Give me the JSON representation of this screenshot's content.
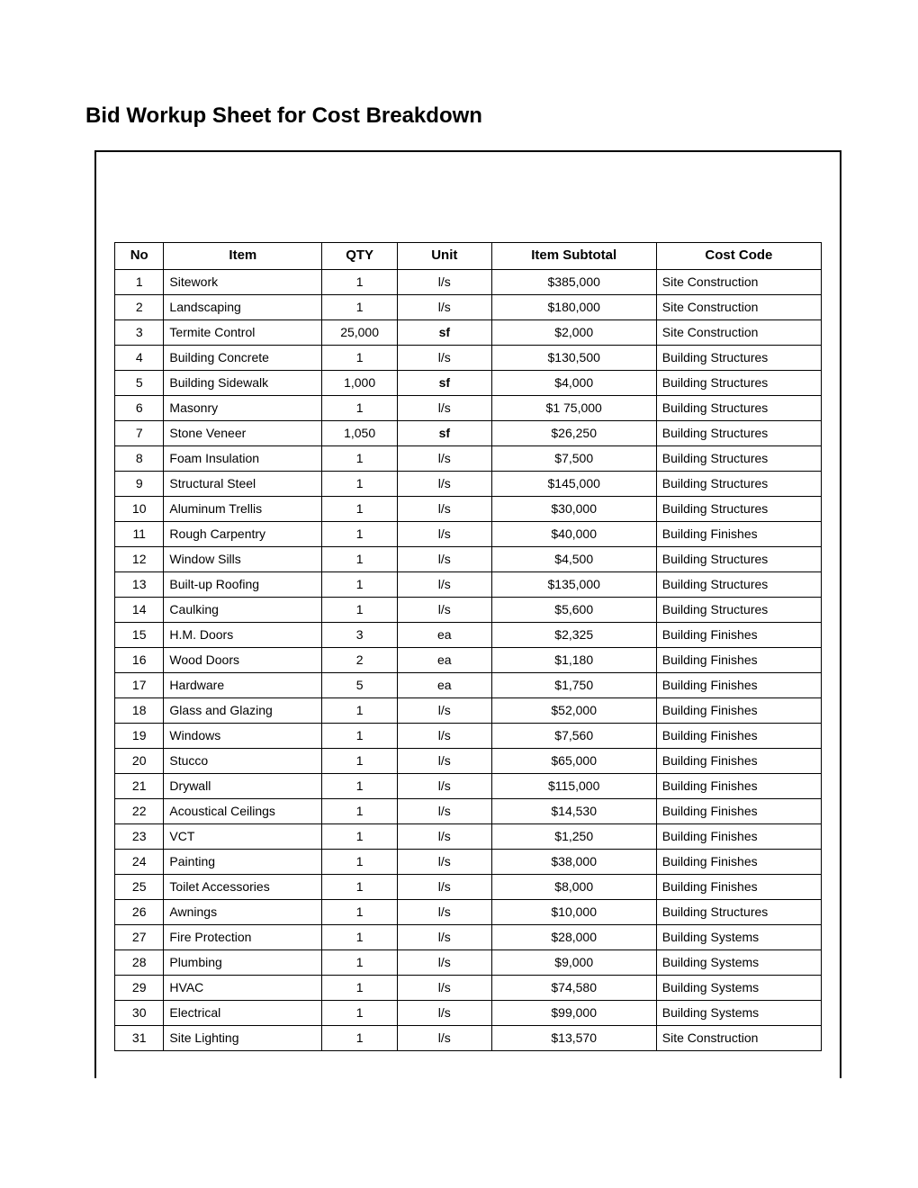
{
  "title": "Bid Workup Sheet for Cost Breakdown",
  "table": {
    "headers": {
      "no": "No",
      "item": "Item",
      "qty": "QTY",
      "unit": "Unit",
      "subtotal": "Item Subtotal",
      "code": "Cost Code"
    },
    "rows": [
      {
        "no": "1",
        "item": "Sitework",
        "qty": "1",
        "unit": "l/s",
        "unitBold": false,
        "subtotal": "$385,000",
        "code": "Site Construction"
      },
      {
        "no": "2",
        "item": "Landscaping",
        "qty": "1",
        "unit": "l/s",
        "unitBold": false,
        "subtotal": "$180,000",
        "code": "Site Construction"
      },
      {
        "no": "3",
        "item": "Termite Control",
        "qty": "25,000",
        "unit": "sf",
        "unitBold": true,
        "subtotal": "$2,000",
        "code": "Site Construction"
      },
      {
        "no": "4",
        "item": "Building Concrete",
        "qty": "1",
        "unit": "l/s",
        "unitBold": false,
        "subtotal": "$130,500",
        "code": "Building Structures"
      },
      {
        "no": "5",
        "item": "Building Sidewalk",
        "qty": "1,000",
        "unit": "sf",
        "unitBold": true,
        "subtotal": "$4,000",
        "code": "Building Structures"
      },
      {
        "no": "6",
        "item": "Masonry",
        "qty": "1",
        "unit": "l/s",
        "unitBold": false,
        "subtotal": "$1 75,000",
        "code": "Building Structures"
      },
      {
        "no": "7",
        "item": "Stone Veneer",
        "qty": "1,050",
        "unit": "sf",
        "unitBold": true,
        "subtotal": "$26,250",
        "code": "Building Structures"
      },
      {
        "no": "8",
        "item": "Foam Insulation",
        "qty": "1",
        "unit": "l/s",
        "unitBold": false,
        "subtotal": "$7,500",
        "code": "Building Structures"
      },
      {
        "no": "9",
        "item": "Structural Steel",
        "qty": "1",
        "unit": "l/s",
        "unitBold": false,
        "subtotal": "$145,000",
        "code": "Building Structures"
      },
      {
        "no": "10",
        "item": "Aluminum Trellis",
        "qty": "1",
        "unit": "l/s",
        "unitBold": false,
        "subtotal": "$30,000",
        "code": "Building Structures"
      },
      {
        "no": "11",
        "item": "Rough Carpentry",
        "qty": "1",
        "unit": "l/s",
        "unitBold": false,
        "subtotal": "$40,000",
        "code": "Building Finishes"
      },
      {
        "no": "12",
        "item": "Window Sills",
        "qty": "1",
        "unit": "l/s",
        "unitBold": false,
        "subtotal": "$4,500",
        "code": "Building Structures"
      },
      {
        "no": "13",
        "item": "Built-up Roofing",
        "qty": "1",
        "unit": "l/s",
        "unitBold": false,
        "subtotal": "$135,000",
        "code": "Building Structures"
      },
      {
        "no": "14",
        "item": "Caulking",
        "qty": "1",
        "unit": "l/s",
        "unitBold": false,
        "subtotal": "$5,600",
        "code": "Building Structures"
      },
      {
        "no": "15",
        "item": "H.M. Doors",
        "qty": "3",
        "unit": "ea",
        "unitBold": false,
        "subtotal": "$2,325",
        "code": "Building Finishes"
      },
      {
        "no": "16",
        "item": "Wood Doors",
        "qty": "2",
        "unit": "ea",
        "unitBold": false,
        "subtotal": "$1,180",
        "code": "Building Finishes"
      },
      {
        "no": "17",
        "item": "Hardware",
        "qty": "5",
        "unit": "ea",
        "unitBold": false,
        "subtotal": "$1,750",
        "code": "Building Finishes"
      },
      {
        "no": "18",
        "item": "Glass and Glazing",
        "qty": "1",
        "unit": "l/s",
        "unitBold": false,
        "subtotal": "$52,000",
        "code": "Building Finishes"
      },
      {
        "no": "19",
        "item": "Windows",
        "qty": "1",
        "unit": "l/s",
        "unitBold": false,
        "subtotal": "$7,560",
        "code": "Building Finishes"
      },
      {
        "no": "20",
        "item": "Stucco",
        "qty": "1",
        "unit": "l/s",
        "unitBold": false,
        "subtotal": "$65,000",
        "code": "Building Finishes"
      },
      {
        "no": "21",
        "item": "Drywall",
        "qty": "1",
        "unit": "l/s",
        "unitBold": false,
        "subtotal": "$115,000",
        "code": "Building Finishes"
      },
      {
        "no": "22",
        "item": "Acoustical Ceilings",
        "qty": "1",
        "unit": "l/s",
        "unitBold": false,
        "subtotal": "$14,530",
        "code": "Building Finishes"
      },
      {
        "no": "23",
        "item": "VCT",
        "qty": "1",
        "unit": "l/s",
        "unitBold": false,
        "subtotal": "$1,250",
        "code": "Building Finishes"
      },
      {
        "no": "24",
        "item": "Painting",
        "qty": "1",
        "unit": "l/s",
        "unitBold": false,
        "subtotal": "$38,000",
        "code": "Building Finishes"
      },
      {
        "no": "25",
        "item": "Toilet Accessories",
        "qty": "1",
        "unit": "l/s",
        "unitBold": false,
        "subtotal": "$8,000",
        "code": "Building Finishes"
      },
      {
        "no": "26",
        "item": "Awnings",
        "qty": "1",
        "unit": "l/s",
        "unitBold": false,
        "subtotal": "$10,000",
        "code": "Building Structures"
      },
      {
        "no": "27",
        "item": "Fire Protection",
        "qty": "1",
        "unit": "l/s",
        "unitBold": false,
        "subtotal": "$28,000",
        "code": "Building Systems"
      },
      {
        "no": "28",
        "item": "Plumbing",
        "qty": "1",
        "unit": "l/s",
        "unitBold": false,
        "subtotal": "$9,000",
        "code": "Building Systems"
      },
      {
        "no": "29",
        "item": "HVAC",
        "qty": "1",
        "unit": "l/s",
        "unitBold": false,
        "subtotal": "$74,580",
        "code": "Building Systems"
      },
      {
        "no": "30",
        "item": "Electrical",
        "qty": "1",
        "unit": "l/s",
        "unitBold": false,
        "subtotal": "$99,000",
        "code": "Building Systems"
      },
      {
        "no": "31",
        "item": "Site Lighting",
        "qty": "1",
        "unit": "l/s",
        "unitBold": false,
        "subtotal": "$13,570",
        "code": "Site Construction"
      }
    ]
  }
}
